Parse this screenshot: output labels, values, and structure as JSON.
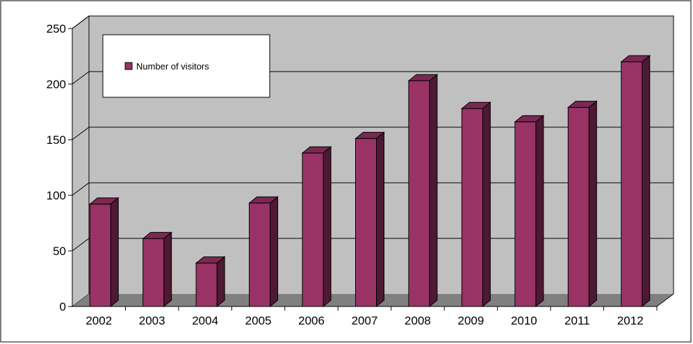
{
  "chart_data": {
    "type": "bar",
    "title": "",
    "xlabel": "",
    "ylabel": "",
    "categories": [
      "2002",
      "2003",
      "2004",
      "2005",
      "2006",
      "2007",
      "2008",
      "2009",
      "2010",
      "2011",
      "2012"
    ],
    "series": [
      {
        "name": "Number of visitors",
        "values": [
          92,
          61,
          39,
          93,
          138,
          151,
          203,
          178,
          166,
          179,
          220
        ]
      }
    ],
    "ylim": [
      0,
      250
    ],
    "yticks": [
      "0",
      "50",
      "100",
      "150",
      "200",
      "250"
    ],
    "grid": true,
    "style": "3d-column",
    "legend_position": "top-left",
    "colors": {
      "bar_front": "#993366",
      "bar_side": "#4d1933",
      "bar_top": "#7a2952",
      "wall": "#c0c0c0",
      "floor": "#808080",
      "grid": "#000000",
      "legend_bg": "#ffffff"
    }
  }
}
